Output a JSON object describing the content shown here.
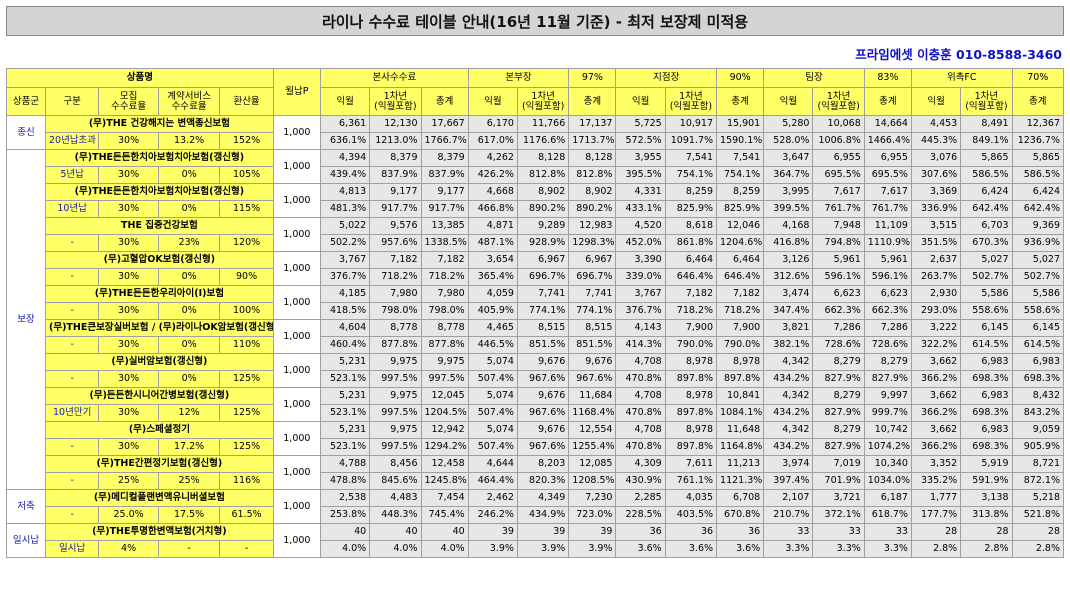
{
  "title": "라이나 수수료 테이블 안내(16년 11월 기준) - 최저 보장제 미적용",
  "contact": "프라임에셋 이충훈 010-8588-3460",
  "header": {
    "product_group": "상품명",
    "premium": "월납P",
    "groups": [
      {
        "name": "본사수수료",
        "pct": ""
      },
      {
        "name": "본부장",
        "pct": "97%"
      },
      {
        "name": "지점장",
        "pct": "90%"
      },
      {
        "name": "팀장",
        "pct": "83%"
      },
      {
        "name": "위촉FC",
        "pct": "70%"
      }
    ],
    "category": "상품군",
    "type": "구분",
    "recruit": "모집\n수수료율",
    "contract": "계약서비스\n수수료율",
    "conversion": "환산율",
    "next_month": "익월",
    "first_year": "1차년\n(익월포함)",
    "total": "총계"
  },
  "products": [
    {
      "category": "종신",
      "name": "(무)THE 건강해지는 변액종신보험",
      "type": "20년납초과",
      "recruit": "30%",
      "contract": "13.2%",
      "conversion": "152%",
      "premium": "1,000",
      "amounts": [
        "6,361",
        "12,130",
        "17,667",
        "6,170",
        "11,766",
        "17,137",
        "5,725",
        "10,917",
        "15,901",
        "5,280",
        "10,068",
        "14,664",
        "4,453",
        "8,491",
        "12,367"
      ],
      "rates": [
        "636.1%",
        "1213.0%",
        "1766.7%",
        "617.0%",
        "1176.6%",
        "1713.7%",
        "572.5%",
        "1091.7%",
        "1590.1%",
        "528.0%",
        "1006.8%",
        "1466.4%",
        "445.3%",
        "849.1%",
        "1236.7%"
      ]
    },
    {
      "category": "보장",
      "name": "(무)THE든든한치아보험치아보험(갱신형)",
      "type": "5년납",
      "recruit": "30%",
      "contract": "0%",
      "conversion": "105%",
      "premium": "1,000",
      "amounts": [
        "4,394",
        "8,379",
        "8,379",
        "4,262",
        "8,128",
        "8,128",
        "3,955",
        "7,541",
        "7,541",
        "3,647",
        "6,955",
        "6,955",
        "3,076",
        "5,865",
        "5,865"
      ],
      "rates": [
        "439.4%",
        "837.9%",
        "837.9%",
        "426.2%",
        "812.8%",
        "812.8%",
        "395.5%",
        "754.1%",
        "754.1%",
        "364.7%",
        "695.5%",
        "695.5%",
        "307.6%",
        "586.5%",
        "586.5%"
      ]
    },
    {
      "category": "",
      "name": "(무)THE든든한치아보험치아보험(갱신형)",
      "type": "10년납",
      "recruit": "30%",
      "contract": "0%",
      "conversion": "115%",
      "premium": "1,000",
      "amounts": [
        "4,813",
        "9,177",
        "9,177",
        "4,668",
        "8,902",
        "8,902",
        "4,331",
        "8,259",
        "8,259",
        "3,995",
        "7,617",
        "7,617",
        "3,369",
        "6,424",
        "6,424"
      ],
      "rates": [
        "481.3%",
        "917.7%",
        "917.7%",
        "466.8%",
        "890.2%",
        "890.2%",
        "433.1%",
        "825.9%",
        "825.9%",
        "399.5%",
        "761.7%",
        "761.7%",
        "336.9%",
        "642.4%",
        "642.4%"
      ]
    },
    {
      "category": "",
      "name": "THE 집중건강보험",
      "type": "-",
      "recruit": "30%",
      "contract": "23%",
      "conversion": "120%",
      "premium": "1,000",
      "amounts": [
        "5,022",
        "9,576",
        "13,385",
        "4,871",
        "9,289",
        "12,983",
        "4,520",
        "8,618",
        "12,046",
        "4,168",
        "7,948",
        "11,109",
        "3,515",
        "6,703",
        "9,369"
      ],
      "rates": [
        "502.2%",
        "957.6%",
        "1338.5%",
        "487.1%",
        "928.9%",
        "1298.3%",
        "452.0%",
        "861.8%",
        "1204.6%",
        "416.8%",
        "794.8%",
        "1110.9%",
        "351.5%",
        "670.3%",
        "936.9%"
      ]
    },
    {
      "category": "",
      "name": "(무)고혈압OK보험(갱신형)",
      "type": "-",
      "recruit": "30%",
      "contract": "0%",
      "conversion": "90%",
      "premium": "1,000",
      "amounts": [
        "3,767",
        "7,182",
        "7,182",
        "3,654",
        "6,967",
        "6,967",
        "3,390",
        "6,464",
        "6,464",
        "3,126",
        "5,961",
        "5,961",
        "2,637",
        "5,027",
        "5,027"
      ],
      "rates": [
        "376.7%",
        "718.2%",
        "718.2%",
        "365.4%",
        "696.7%",
        "696.7%",
        "339.0%",
        "646.4%",
        "646.4%",
        "312.6%",
        "596.1%",
        "596.1%",
        "263.7%",
        "502.7%",
        "502.7%"
      ]
    },
    {
      "category": "",
      "name": "(무)THE든든한우리아이(I)보험",
      "type": "-",
      "recruit": "30%",
      "contract": "0%",
      "conversion": "100%",
      "premium": "1,000",
      "amounts": [
        "4,185",
        "7,980",
        "7,980",
        "4,059",
        "7,741",
        "7,741",
        "3,767",
        "7,182",
        "7,182",
        "3,474",
        "6,623",
        "6,623",
        "2,930",
        "5,586",
        "5,586"
      ],
      "rates": [
        "418.5%",
        "798.0%",
        "798.0%",
        "405.9%",
        "774.1%",
        "774.1%",
        "376.7%",
        "718.2%",
        "718.2%",
        "347.4%",
        "662.3%",
        "662.3%",
        "293.0%",
        "558.6%",
        "558.6%"
      ]
    },
    {
      "category": "",
      "name": "(무)THE큰보장실버보험 / (무)라이나OK암보험(갱신형)",
      "type": "-",
      "recruit": "30%",
      "contract": "0%",
      "conversion": "110%",
      "premium": "1,000",
      "amounts": [
        "4,604",
        "8,778",
        "8,778",
        "4,465",
        "8,515",
        "8,515",
        "4,143",
        "7,900",
        "7,900",
        "3,821",
        "7,286",
        "7,286",
        "3,222",
        "6,145",
        "6,145"
      ],
      "rates": [
        "460.4%",
        "877.8%",
        "877.8%",
        "446.5%",
        "851.5%",
        "851.5%",
        "414.3%",
        "790.0%",
        "790.0%",
        "382.1%",
        "728.6%",
        "728.6%",
        "322.2%",
        "614.5%",
        "614.5%"
      ]
    },
    {
      "category": "",
      "name": "(무)실버암보험(갱신형)",
      "type": "-",
      "recruit": "30%",
      "contract": "0%",
      "conversion": "125%",
      "premium": "1,000",
      "amounts": [
        "5,231",
        "9,975",
        "9,975",
        "5,074",
        "9,676",
        "9,676",
        "4,708",
        "8,978",
        "8,978",
        "4,342",
        "8,279",
        "8,279",
        "3,662",
        "6,983",
        "6,983"
      ],
      "rates": [
        "523.1%",
        "997.5%",
        "997.5%",
        "507.4%",
        "967.6%",
        "967.6%",
        "470.8%",
        "897.8%",
        "897.8%",
        "434.2%",
        "827.9%",
        "827.9%",
        "366.2%",
        "698.3%",
        "698.3%"
      ]
    },
    {
      "category": "",
      "name": "(무)든든한시니어간병보험(갱신형)",
      "type": "10년만기",
      "recruit": "30%",
      "contract": "12%",
      "conversion": "125%",
      "premium": "1,000",
      "amounts": [
        "5,231",
        "9,975",
        "12,045",
        "5,074",
        "9,676",
        "11,684",
        "4,708",
        "8,978",
        "10,841",
        "4,342",
        "8,279",
        "9,997",
        "3,662",
        "6,983",
        "8,432"
      ],
      "rates": [
        "523.1%",
        "997.5%",
        "1204.5%",
        "507.4%",
        "967.6%",
        "1168.4%",
        "470.8%",
        "897.8%",
        "1084.1%",
        "434.2%",
        "827.9%",
        "999.7%",
        "366.2%",
        "698.3%",
        "843.2%"
      ]
    },
    {
      "category": "",
      "name": "(무)스페셜정기",
      "type": "-",
      "recruit": "30%",
      "contract": "17.2%",
      "conversion": "125%",
      "premium": "1,000",
      "amounts": [
        "5,231",
        "9,975",
        "12,942",
        "5,074",
        "9,676",
        "12,554",
        "4,708",
        "8,978",
        "11,648",
        "4,342",
        "8,279",
        "10,742",
        "3,662",
        "6,983",
        "9,059"
      ],
      "rates": [
        "523.1%",
        "997.5%",
        "1294.2%",
        "507.4%",
        "967.6%",
        "1255.4%",
        "470.8%",
        "897.8%",
        "1164.8%",
        "434.2%",
        "827.9%",
        "1074.2%",
        "366.2%",
        "698.3%",
        "905.9%"
      ]
    },
    {
      "category": "",
      "name": "(무)THE간편정기보험(갱신형)",
      "type": "-",
      "recruit": "25%",
      "contract": "25%",
      "conversion": "116%",
      "premium": "1,000",
      "amounts": [
        "4,788",
        "8,456",
        "12,458",
        "4,644",
        "8,203",
        "12,085",
        "4,309",
        "7,611",
        "11,213",
        "3,974",
        "7,019",
        "10,340",
        "3,352",
        "5,919",
        "8,721"
      ],
      "rates": [
        "478.8%",
        "845.6%",
        "1245.8%",
        "464.4%",
        "820.3%",
        "1208.5%",
        "430.9%",
        "761.1%",
        "1121.3%",
        "397.4%",
        "701.9%",
        "1034.0%",
        "335.2%",
        "591.9%",
        "872.1%"
      ]
    },
    {
      "category": "저축",
      "name": "(무)메디컬플랜변액유니버셜보험",
      "type": "-",
      "recruit": "25.0%",
      "contract": "17.5%",
      "conversion": "61.5%",
      "premium": "1,000",
      "amounts": [
        "2,538",
        "4,483",
        "7,454",
        "2,462",
        "4,349",
        "7,230",
        "2,285",
        "4,035",
        "6,708",
        "2,107",
        "3,721",
        "6,187",
        "1,777",
        "3,138",
        "5,218"
      ],
      "rates": [
        "253.8%",
        "448.3%",
        "745.4%",
        "246.2%",
        "434.9%",
        "723.0%",
        "228.5%",
        "403.5%",
        "670.8%",
        "210.7%",
        "372.1%",
        "618.7%",
        "177.7%",
        "313.8%",
        "521.8%"
      ]
    },
    {
      "category": "일시납",
      "name": "(무)THE투명한변액보험(거치형)",
      "type": "일시납",
      "recruit": "4%",
      "contract": "-",
      "conversion": "-",
      "premium": "1,000",
      "amounts": [
        "40",
        "40",
        "40",
        "39",
        "39",
        "39",
        "36",
        "36",
        "36",
        "33",
        "33",
        "33",
        "28",
        "28",
        "28"
      ],
      "rates": [
        "4.0%",
        "4.0%",
        "4.0%",
        "3.9%",
        "3.9%",
        "3.9%",
        "3.6%",
        "3.6%",
        "3.6%",
        "3.3%",
        "3.3%",
        "3.3%",
        "2.8%",
        "2.8%",
        "2.8%"
      ]
    }
  ]
}
